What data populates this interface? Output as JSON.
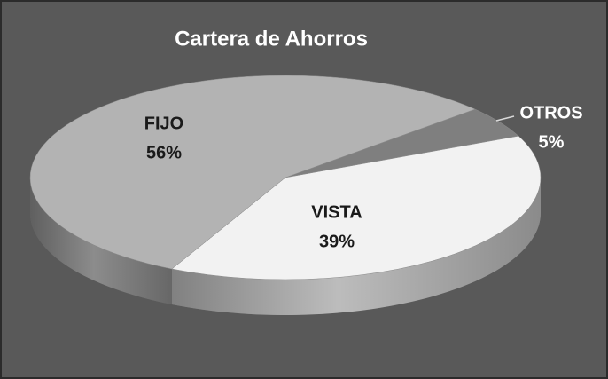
{
  "chart_data": {
    "type": "pie",
    "title": "Cartera de Ahorros",
    "categories": [
      "OTROS",
      "VISTA",
      "FIJO"
    ],
    "values": [
      5,
      39,
      56
    ],
    "value_labels": [
      "5%",
      "39%",
      "56%"
    ],
    "colors": [
      "#7f7f7f",
      "#f2f2f2",
      "#b3b3b3"
    ]
  }
}
